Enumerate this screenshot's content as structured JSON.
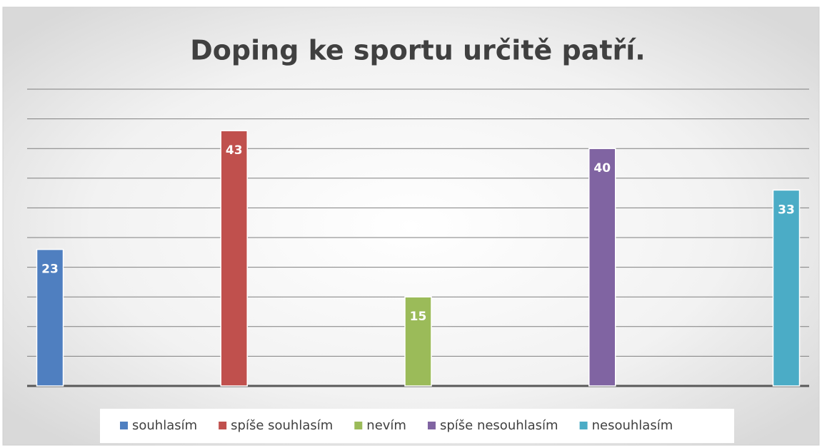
{
  "chart_data": {
    "type": "bar",
    "title": "Doping ke sportu určitě patří.",
    "series": [
      {
        "name": "souhlasím",
        "color": "#4f7fc0",
        "values": [
          23
        ]
      },
      {
        "name": "spíše souhlasím",
        "color": "#c0504d",
        "values": [
          43
        ]
      },
      {
        "name": "nevím",
        "color": "#9bbb59",
        "values": [
          15
        ]
      },
      {
        "name": "spíše nesouhlasím",
        "color": "#8064a2",
        "values": [
          40
        ]
      },
      {
        "name": "nesouhlasím",
        "color": "#4bacc6",
        "values": [
          33
        ]
      }
    ],
    "ylim": [
      0,
      50
    ],
    "yticks": [
      0,
      5,
      10,
      15,
      20,
      25,
      30,
      35,
      40,
      45,
      50
    ],
    "grid": true,
    "legend": "bottom"
  }
}
